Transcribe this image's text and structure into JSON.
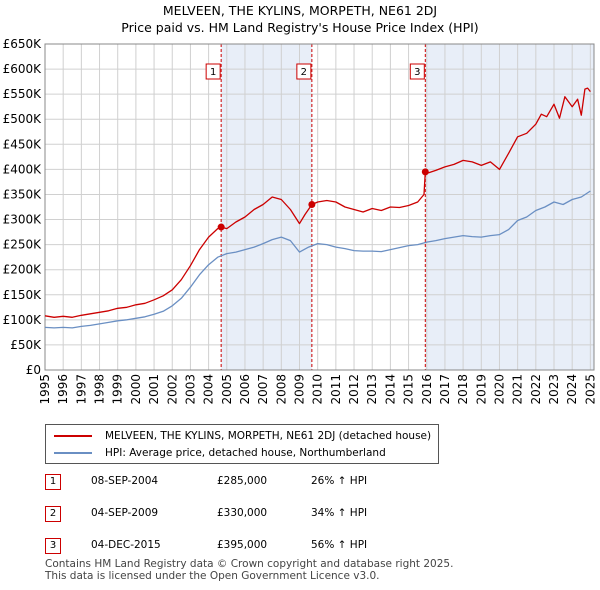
{
  "title_line1": "MELVEEN, THE KYLINS, MORPETH, NE61 2DJ",
  "title_line2": "Price paid vs. HM Land Registry's House Price Index (HPI)",
  "legend": {
    "property": "MELVEEN, THE KYLINS, MORPETH, NE61 2DJ (detached house)",
    "hpi": "HPI: Average price, detached house, Northumberland"
  },
  "colors": {
    "property": "#cc0000",
    "hpi": "#6a8fc3",
    "shade": "#e8eef8",
    "grid": "#d0d0d0",
    "vline": "#cc0000"
  },
  "sales": [
    {
      "num": "1",
      "date": "08-SEP-2004",
      "price": "£285,000",
      "hpi": "26% ↑ HPI"
    },
    {
      "num": "2",
      "date": "04-SEP-2009",
      "price": "£330,000",
      "hpi": "34% ↑ HPI"
    },
    {
      "num": "3",
      "date": "04-DEC-2015",
      "price": "£395,000",
      "hpi": "56% ↑ HPI"
    }
  ],
  "footer_line1": "Contains HM Land Registry data © Crown copyright and database right 2025.",
  "footer_line2": "This data is licensed under the Open Government Licence v3.0.",
  "chart_data": {
    "type": "line",
    "title": "MELVEEN, THE KYLINS, MORPETH, NE61 2DJ — Price paid vs. HM Land Registry's House Price Index (HPI)",
    "xlim": [
      1995,
      2025.2
    ],
    "ylim": [
      0,
      650000
    ],
    "x_ticks": [
      1995,
      1996,
      1997,
      1998,
      1999,
      2000,
      2001,
      2002,
      2003,
      2004,
      2005,
      2006,
      2007,
      2008,
      2009,
      2010,
      2011,
      2012,
      2013,
      2014,
      2015,
      2016,
      2017,
      2018,
      2019,
      2020,
      2021,
      2022,
      2023,
      2024,
      2025
    ],
    "y_ticks": [
      0,
      50000,
      100000,
      150000,
      200000,
      250000,
      300000,
      350000,
      400000,
      450000,
      500000,
      550000,
      600000,
      650000
    ],
    "y_tick_labels": [
      "£0",
      "£50K",
      "£100K",
      "£150K",
      "£200K",
      "£250K",
      "£300K",
      "£350K",
      "£400K",
      "£450K",
      "£500K",
      "£550K",
      "£600K",
      "£650K"
    ],
    "shaded_ranges": [
      [
        2004.69,
        2009.68
      ],
      [
        2015.92,
        2025.2
      ]
    ],
    "sale_markers": [
      {
        "label": "1",
        "x": 2004.69,
        "y": 285000
      },
      {
        "label": "2",
        "x": 2009.68,
        "y": 330000
      },
      {
        "label": "3",
        "x": 2015.92,
        "y": 395000
      }
    ],
    "series": [
      {
        "name": "MELVEEN, THE KYLINS, MORPETH, NE61 2DJ (detached house)",
        "x": [
          1995,
          1995.5,
          1996,
          1996.5,
          1997,
          1997.5,
          1998,
          1998.5,
          1999,
          1999.5,
          2000,
          2000.5,
          2001,
          2001.5,
          2002,
          2002.5,
          2003,
          2003.5,
          2004,
          2004.5,
          2004.69,
          2005,
          2005.5,
          2006,
          2006.5,
          2007,
          2007.5,
          2008,
          2008.5,
          2009,
          2009.3,
          2009.68,
          2010,
          2010.5,
          2011,
          2011.5,
          2012,
          2012.5,
          2013,
          2013.5,
          2014,
          2014.5,
          2015,
          2015.5,
          2015.85,
          2015.92,
          2016,
          2016.5,
          2017,
          2017.5,
          2018,
          2018.5,
          2019,
          2019.5,
          2020,
          2020.5,
          2021,
          2021.5,
          2022,
          2022.3,
          2022.6,
          2023,
          2023.3,
          2023.6,
          2024,
          2024.3,
          2024.5,
          2024.7,
          2024.85,
          2025
        ],
        "y": [
          108000,
          105000,
          107000,
          105000,
          109000,
          112000,
          115000,
          118000,
          123000,
          125000,
          130000,
          133000,
          140000,
          148000,
          160000,
          180000,
          208000,
          240000,
          265000,
          282000,
          285000,
          282000,
          295000,
          305000,
          320000,
          330000,
          345000,
          340000,
          320000,
          292000,
          310000,
          330000,
          335000,
          338000,
          335000,
          325000,
          320000,
          315000,
          322000,
          318000,
          325000,
          324000,
          328000,
          335000,
          350000,
          395000,
          392000,
          398000,
          405000,
          410000,
          418000,
          415000,
          408000,
          415000,
          400000,
          432000,
          465000,
          472000,
          490000,
          510000,
          505000,
          530000,
          502000,
          545000,
          525000,
          540000,
          508000,
          560000,
          562000,
          555000
        ]
      },
      {
        "name": "HPI: Average price, detached house, Northumberland",
        "x": [
          1995,
          1995.5,
          1996,
          1996.5,
          1997,
          1997.5,
          1998,
          1998.5,
          1999,
          1999.5,
          2000,
          2000.5,
          2001,
          2001.5,
          2002,
          2002.5,
          2003,
          2003.5,
          2004,
          2004.5,
          2005,
          2005.5,
          2006,
          2006.5,
          2007,
          2007.5,
          2008,
          2008.5,
          2009,
          2009.5,
          2010,
          2010.5,
          2011,
          2011.5,
          2012,
          2012.5,
          2013,
          2013.5,
          2014,
          2014.5,
          2015,
          2015.5,
          2016,
          2016.5,
          2017,
          2017.5,
          2018,
          2018.5,
          2019,
          2019.5,
          2020,
          2020.5,
          2021,
          2021.5,
          2022,
          2022.5,
          2023,
          2023.5,
          2024,
          2024.5,
          2025
        ],
        "y": [
          85000,
          84000,
          85000,
          84000,
          87000,
          89000,
          92000,
          95000,
          98000,
          100000,
          103000,
          106000,
          111000,
          117000,
          128000,
          143000,
          165000,
          190000,
          210000,
          225000,
          232000,
          235000,
          240000,
          245000,
          252000,
          260000,
          265000,
          258000,
          235000,
          245000,
          252000,
          250000,
          245000,
          242000,
          238000,
          237000,
          237000,
          236000,
          240000,
          244000,
          248000,
          250000,
          255000,
          258000,
          262000,
          265000,
          268000,
          266000,
          265000,
          268000,
          270000,
          280000,
          298000,
          305000,
          318000,
          325000,
          335000,
          330000,
          340000,
          345000,
          357000
        ]
      }
    ]
  }
}
